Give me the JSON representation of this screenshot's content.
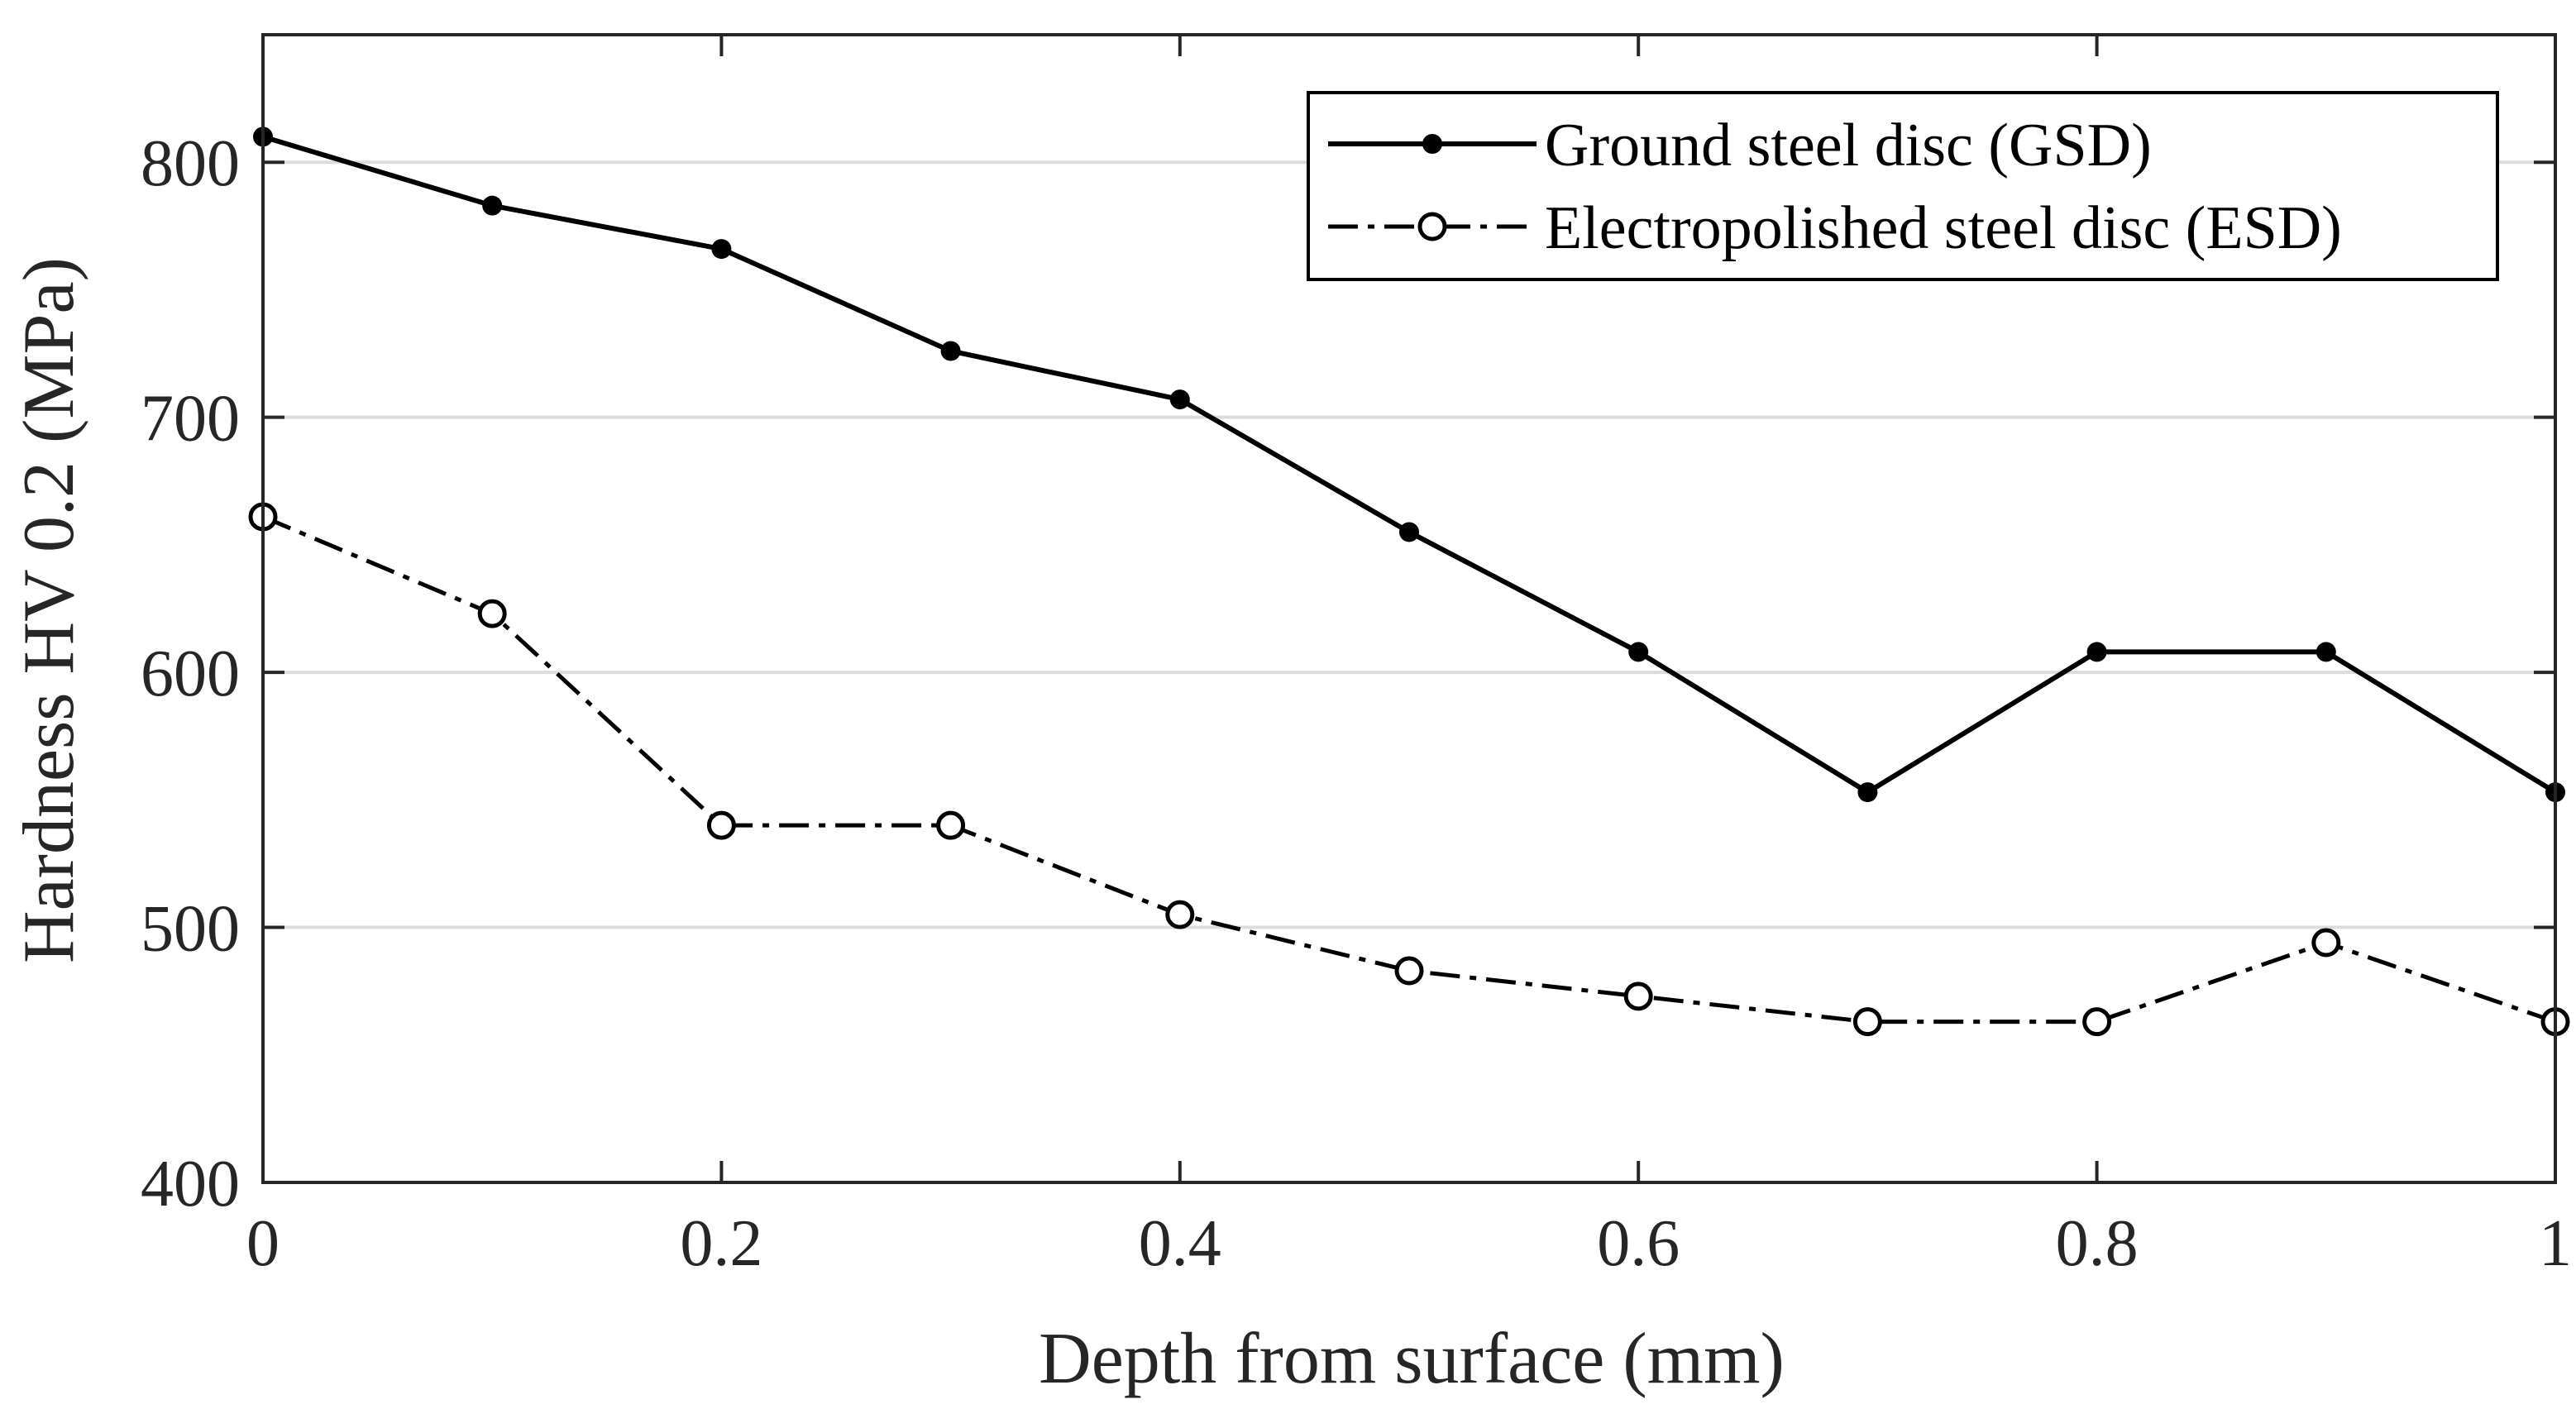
{
  "chart_data": {
    "type": "line",
    "title": "",
    "xlabel": "Depth from surface (mm)",
    "ylabel": "Hardness HV 0.2 (MPa)",
    "xlim": [
      0,
      1
    ],
    "ylim": [
      400,
      850
    ],
    "x_ticks": [
      0,
      0.2,
      0.4,
      0.6,
      0.8,
      1
    ],
    "x_tick_labels": [
      "0",
      "0.2",
      "0.4",
      "0.6",
      "0.8",
      "1"
    ],
    "y_ticks": [
      400,
      500,
      600,
      700,
      800
    ],
    "y_tick_labels": [
      "400",
      "500",
      "600",
      "700",
      "800"
    ],
    "grid": "horizontal",
    "legend_position": "top-right",
    "x": [
      0,
      0.1,
      0.2,
      0.3,
      0.4,
      0.5,
      0.6,
      0.7,
      0.8,
      0.9,
      1.0
    ],
    "series": [
      {
        "name": "Ground steel disc (GSD)",
        "line_style": "solid",
        "marker": "filled-circle",
        "color": "#000000",
        "values": [
          810,
          783,
          766,
          726,
          707,
          655,
          608,
          553,
          608,
          608,
          553
        ]
      },
      {
        "name": "Electropolished steel disc (ESD)",
        "line_style": "dash-dot",
        "marker": "open-circle",
        "color": "#000000",
        "values": [
          661,
          623,
          540,
          540,
          505,
          483,
          473,
          463,
          463,
          494,
          463
        ]
      }
    ]
  }
}
